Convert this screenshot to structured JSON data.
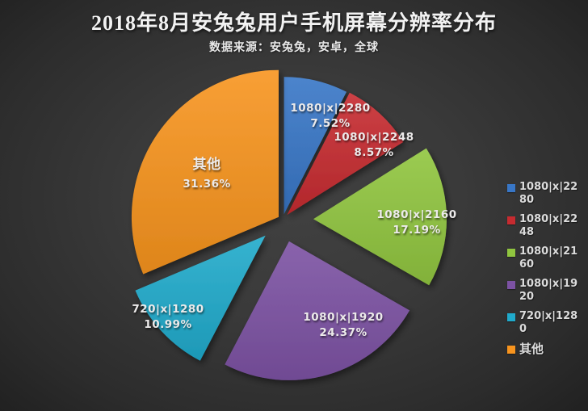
{
  "title": "2018年8月安兔兔用户手机屏幕分辨率分布",
  "subtitle": "数据来源：安兔兔，安卓，全球",
  "chart_data": {
    "type": "pie",
    "title": "2018年8月安兔兔用户手机屏幕分辨率分布",
    "subtitle": "数据来源：安兔兔，安卓，全球",
    "categories": [
      "1080|x|2280",
      "1080|x|2248",
      "1080|x|2160",
      "1080|x|1920",
      "720|x|1280",
      "其他"
    ],
    "values": [
      7.52,
      8.57,
      17.19,
      24.37,
      10.99,
      31.36
    ],
    "labels": [
      "7.52%",
      "8.57%",
      "17.19%",
      "24.37%",
      "10.99%",
      "31.36%"
    ],
    "colors": [
      "#3876C6",
      "#C62B30",
      "#90C53F",
      "#7C52A3",
      "#20AACB",
      "#F7941E"
    ],
    "unit": "%",
    "start_angle_deg": 0,
    "direction": "clockwise",
    "exploded": true,
    "legend_position": "right",
    "background_color": "#333333",
    "text_color": "#ECEAEA"
  }
}
